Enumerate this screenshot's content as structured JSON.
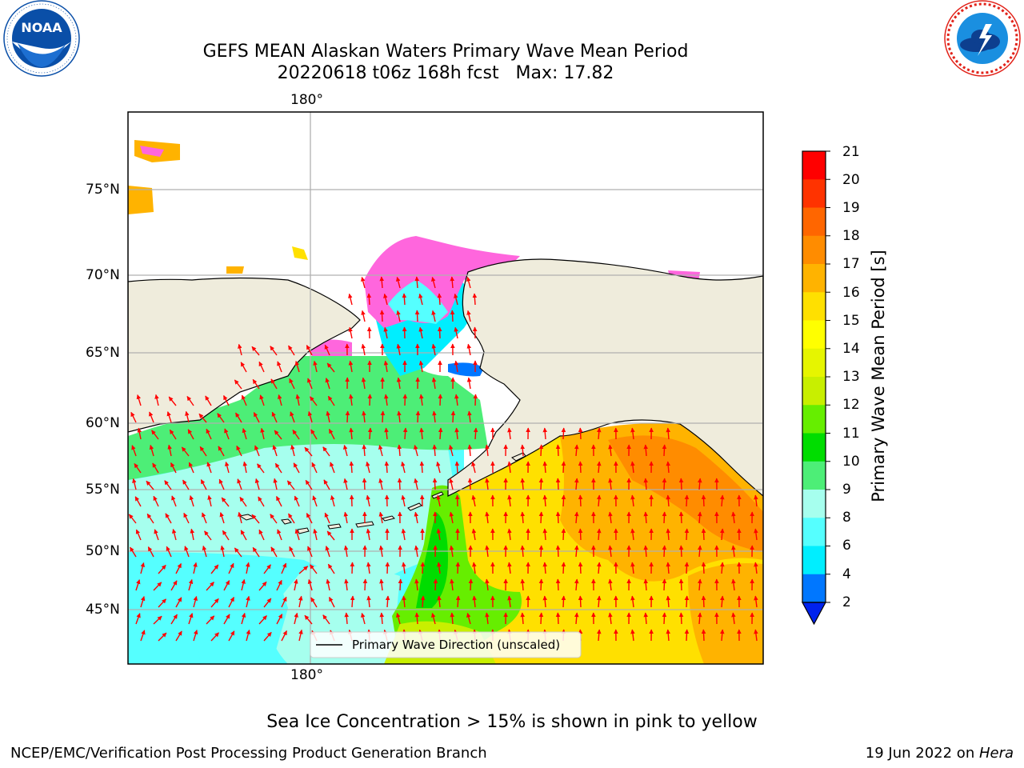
{
  "title_line1": "GEFS MEAN Alaskan Waters Primary Wave Mean Period",
  "title_line2": "20220618 t06z 168h fcst   Max: 17.82",
  "logos": {
    "noaa": {
      "text": "NOAA",
      "ring_text": "NATIONAL OCEANIC AND ATMOSPHERIC ADMINISTRATION · U.S. DEPARTMENT OF COMMERCE",
      "color": "#0a4fa8"
    },
    "nws": {
      "ring_text": "NATIONAL WEATHER SERVICE",
      "color": "#e2231a"
    }
  },
  "map": {
    "lon_label_top": "180°",
    "lon_label_bottom": "180°",
    "lat_labels": [
      "75°N",
      "70°N",
      "65°N",
      "60°N",
      "55°N",
      "50°N",
      "45°N"
    ],
    "land_color": "#efecdc",
    "arrow_color": "#ff0000",
    "legend_label": "Primary Wave Direction (unscaled)"
  },
  "colorbar": {
    "label": "Primary Wave Mean Period [s]",
    "ticks": [
      "21",
      "20",
      "19",
      "18",
      "17",
      "16",
      "15",
      "14",
      "13",
      "12",
      "11",
      "10",
      "9",
      "8",
      "6",
      "4",
      "2"
    ],
    "colors_top_to_bottom": [
      "#ff0000",
      "#ff3300",
      "#ff6600",
      "#ff8c00",
      "#ffb300",
      "#ffe000",
      "#ffff00",
      "#e6f500",
      "#c8ef00",
      "#66ee00",
      "#00dd00",
      "#4dee77",
      "#a6ffee",
      "#55ffff",
      "#00eeff",
      "#0077ff"
    ],
    "extend_color": "#0022ee"
  },
  "note": "Sea Ice Concentration > 15% is shown in pink to yellow",
  "footer_left": "NCEP/EMC/Verification Post Processing Product Generation Branch",
  "footer_right_date": "19 Jun 2022 on ",
  "footer_right_host": "Hera"
}
